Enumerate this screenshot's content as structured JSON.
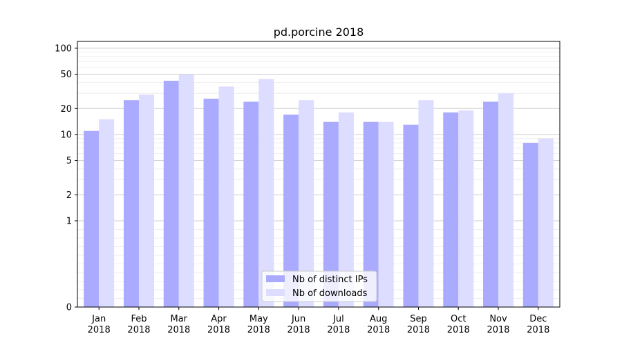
{
  "chart_data": {
    "type": "bar",
    "title": "pd.porcine 2018",
    "xlabel": "",
    "ylabel": "",
    "yscale": "symlog",
    "ylim": [
      0,
      120
    ],
    "yticks": [
      0,
      1,
      2,
      5,
      10,
      20,
      50,
      100
    ],
    "ytick_labels": [
      "0",
      "1",
      "2",
      "5",
      "10",
      "20",
      "50",
      "100"
    ],
    "grid": "horizontal",
    "legend_position": "bottom-center",
    "categories": [
      "Jan\n2018",
      "Feb\n2018",
      "Mar\n2018",
      "Apr\n2018",
      "May\n2018",
      "Jun\n2018",
      "Jul\n2018",
      "Aug\n2018",
      "Sep\n2018",
      "Oct\n2018",
      "Nov\n2018",
      "Dec\n2018"
    ],
    "category_month": [
      "Jan",
      "Feb",
      "Mar",
      "Apr",
      "May",
      "Jun",
      "Jul",
      "Aug",
      "Sep",
      "Oct",
      "Nov",
      "Dec"
    ],
    "category_year": [
      "2018",
      "2018",
      "2018",
      "2018",
      "2018",
      "2018",
      "2018",
      "2018",
      "2018",
      "2018",
      "2018",
      "2018"
    ],
    "series": [
      {
        "name": "Nb of distinct IPs",
        "color": "#aaaaff",
        "values": [
          11,
          25,
          42,
          26,
          24,
          17,
          14,
          14,
          13,
          18,
          24,
          8
        ]
      },
      {
        "name": "Nb of downloads",
        "color": "#ddddff",
        "values": [
          15,
          29,
          50,
          36,
          44,
          25,
          18,
          14,
          25,
          19,
          30,
          9
        ]
      }
    ]
  }
}
